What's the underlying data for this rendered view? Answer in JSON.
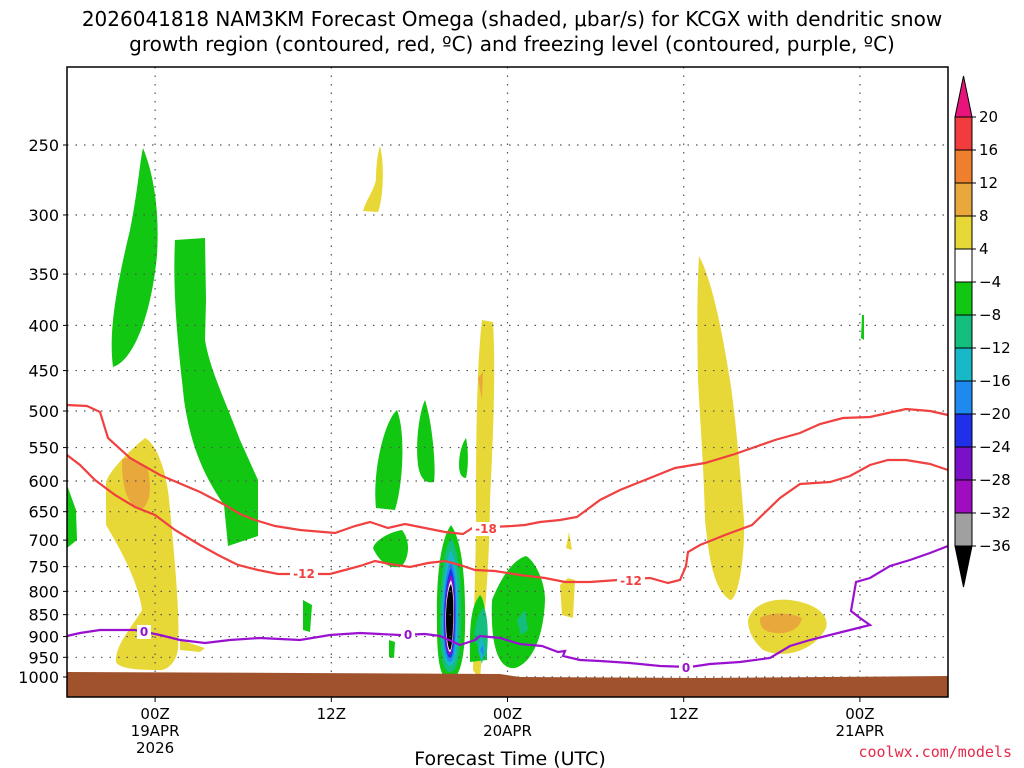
{
  "chart_data": {
    "type": "heatmap",
    "title_line1": "2026041818 NAM3KM Forecast Omega (shaded, μbar/s) for KCGX with dendritic snow",
    "title_line2": "growth region (contoured, red, ºC) and freezing level (contoured, purple, ºC)",
    "xlabel": "Forecast Time (UTC)",
    "x_ticks": [
      {
        "hour": 6,
        "lines": [
          "00Z",
          "19APR",
          "2026"
        ]
      },
      {
        "hour": 18,
        "lines": [
          "12Z"
        ]
      },
      {
        "hour": 30,
        "lines": [
          "00Z",
          "20APR"
        ]
      },
      {
        "hour": 42,
        "lines": [
          "12Z"
        ]
      },
      {
        "hour": 54,
        "lines": [
          "00Z",
          "21APR"
        ]
      }
    ],
    "x_range_hours": [
      0,
      60
    ],
    "y_ticks_hpa": [
      250,
      300,
      350,
      400,
      450,
      500,
      550,
      600,
      650,
      700,
      750,
      800,
      850,
      900,
      950,
      1000
    ],
    "colorbar": {
      "labels": [
        "20",
        "16",
        "12",
        "8",
        "4",
        "−4",
        "−8",
        "−12",
        "−16",
        "−20",
        "−24",
        "−28",
        "−32",
        "−36"
      ],
      "colors": {
        "c24": "#e8147c",
        "c20": "#f03c3c",
        "c16": "#ee7f2d",
        "c12": "#e8a83c",
        "c8": "#e8d837",
        "c4": "#ffffff",
        "cm4": "#11c711",
        "cm8": "#13be7e",
        "cm12": "#18b8c8",
        "cm16": "#1e8af0",
        "cm20": "#2030e8",
        "cm24": "#7a10c8",
        "cm28": "#a00cc0",
        "cm32": "#a0a0a0",
        "cm36": "#000000"
      }
    },
    "contour_labels": {
      "dgz_warm": "-12",
      "dgz_cold": "-18",
      "freezing": "0"
    },
    "series": [
      {
        "name": "-12 C isotherm (red)",
        "color": "#f04040"
      },
      {
        "name": "-18 C isotherm (red)",
        "color": "#f04040"
      },
      {
        "name": "0 C freezing level (purple)",
        "color": "#9a10d0"
      }
    ],
    "ground_color": "#a0522d",
    "credit": "coolwx.com/models"
  }
}
